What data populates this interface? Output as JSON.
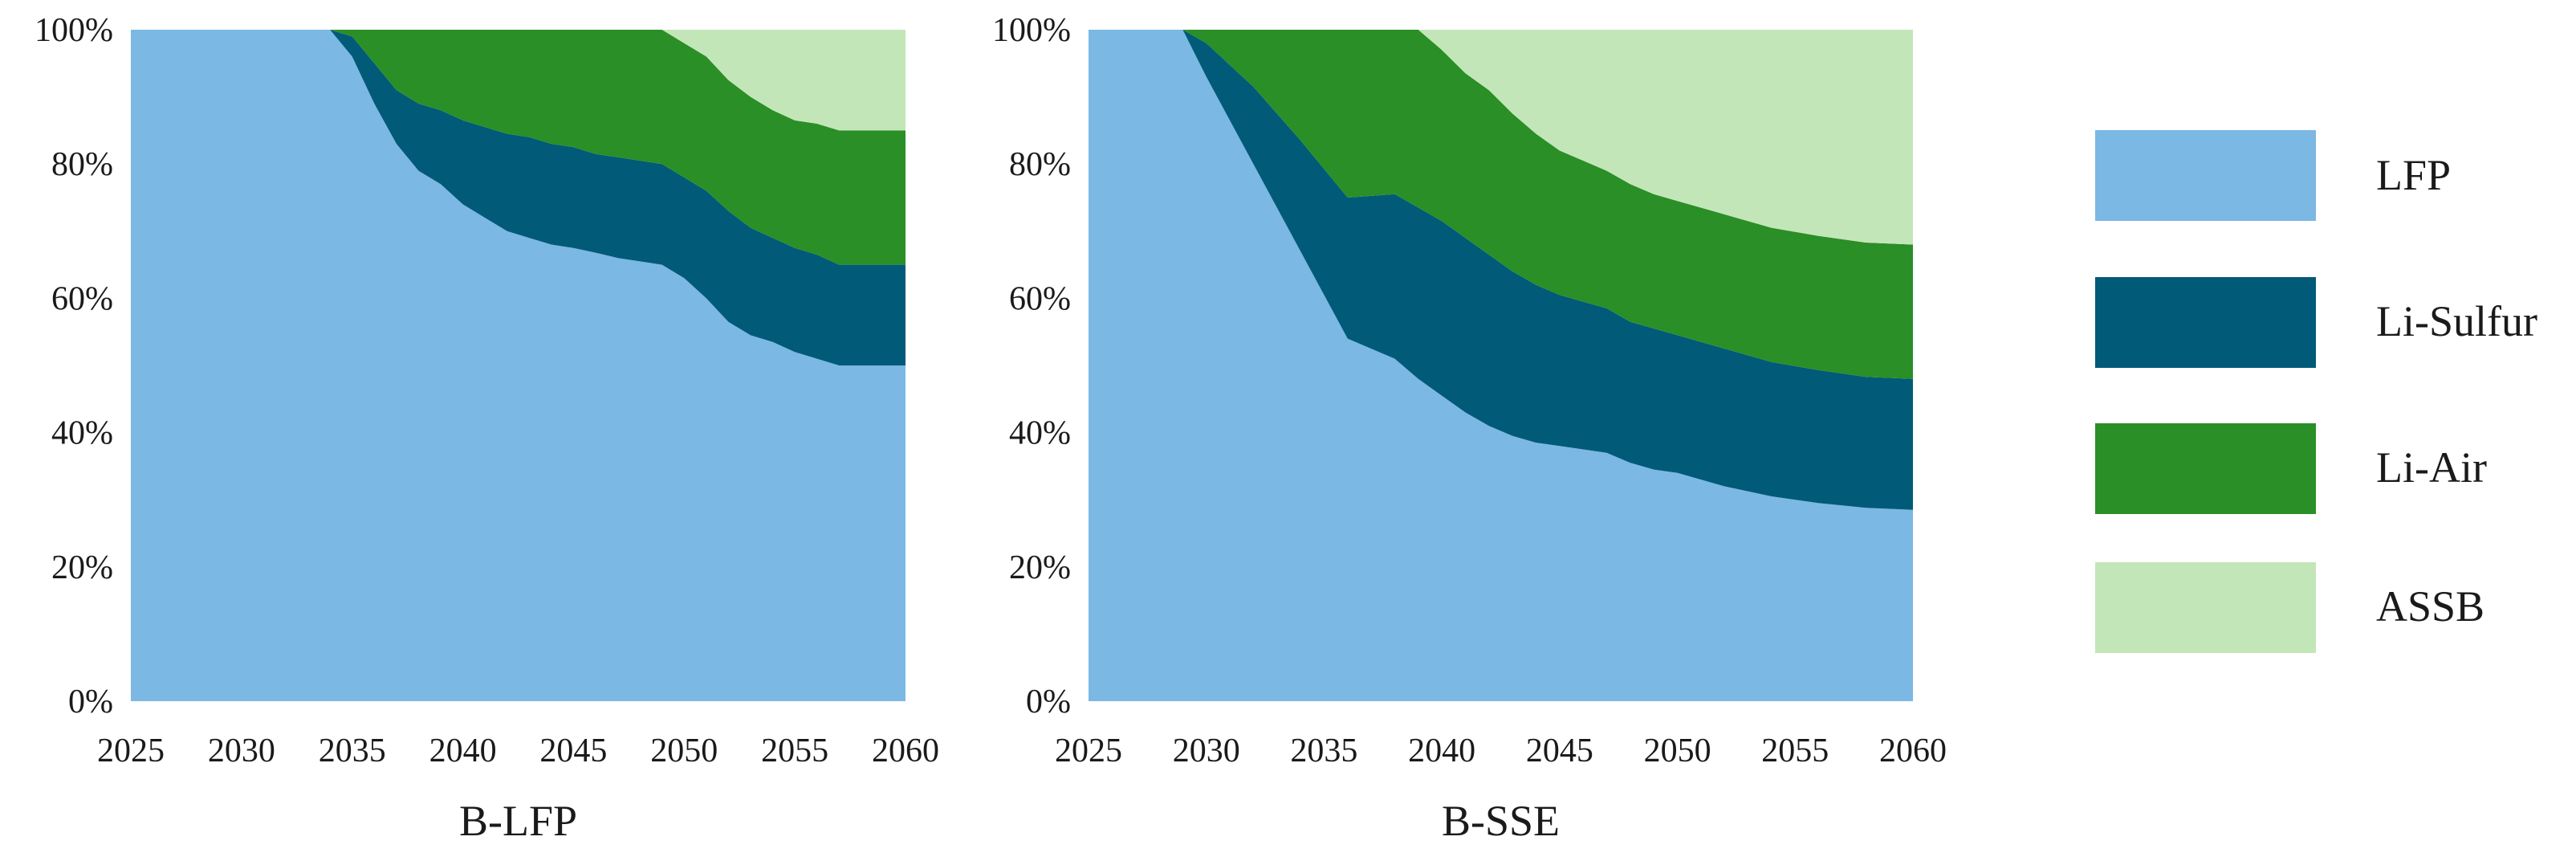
{
  "chart_data": [
    {
      "type": "area",
      "stacked": true,
      "title": "B-LFP",
      "xlabel": "B-LFP",
      "ylabel": "",
      "xlim": [
        2025,
        2060
      ],
      "ylim": [
        0,
        100
      ],
      "x_ticks": [
        "2025",
        "2030",
        "2035",
        "2040",
        "2045",
        "2050",
        "2055",
        "2060"
      ],
      "y_ticks": [
        "0%",
        "20%",
        "40%",
        "60%",
        "80%",
        "100%"
      ],
      "grid": false,
      "x": [
        2025,
        2030,
        2034,
        2035,
        2036,
        2037,
        2038,
        2039,
        2040,
        2041,
        2042,
        2043,
        2044,
        2045,
        2046,
        2047,
        2048,
        2049,
        2050,
        2051,
        2052,
        2053,
        2054,
        2055,
        2056,
        2057,
        2058,
        2059,
        2060
      ],
      "series": [
        {
          "name": "LFP",
          "values": [
            100,
            100,
            100,
            96,
            89,
            83,
            79,
            77,
            74,
            72,
            70,
            69,
            68,
            67.5,
            66.8,
            66,
            65.5,
            65,
            63,
            60,
            56.5,
            54.5,
            53.5,
            52,
            51,
            50,
            50,
            50,
            50
          ]
        },
        {
          "name": "Li-Sulfur",
          "values": [
            0,
            0,
            0,
            3,
            6,
            8,
            10,
            11,
            12.5,
            13.5,
            14.5,
            15,
            15,
            15,
            14.7,
            15,
            15,
            15,
            15,
            16,
            16.5,
            16,
            15.5,
            15.5,
            15.5,
            15,
            15,
            15,
            15
          ]
        },
        {
          "name": "Li-Air",
          "values": [
            0,
            0,
            0,
            1,
            5,
            9,
            11,
            12,
            13.5,
            14.5,
            15.5,
            16,
            17,
            17.5,
            18.5,
            19,
            19.5,
            20,
            20,
            20,
            19.5,
            19.5,
            19,
            19,
            19.5,
            20,
            20,
            20,
            20
          ]
        },
        {
          "name": "ASSB",
          "values": [
            0,
            0,
            0,
            0,
            0,
            0,
            0,
            0,
            0,
            0,
            0,
            0,
            0,
            0,
            0,
            0,
            0,
            0,
            2,
            4,
            7.5,
            10,
            12,
            13.5,
            14,
            15,
            15,
            15,
            15
          ]
        }
      ]
    },
    {
      "type": "area",
      "stacked": true,
      "title": "B-SSE",
      "xlabel": "B-SSE",
      "ylabel": "",
      "xlim": [
        2025,
        2060
      ],
      "ylim": [
        0,
        100
      ],
      "x_ticks": [
        "2025",
        "2030",
        "2035",
        "2040",
        "2045",
        "2050",
        "2055",
        "2060"
      ],
      "y_ticks": [
        "0%",
        "20%",
        "40%",
        "60%",
        "80%",
        "100%"
      ],
      "grid": false,
      "x": [
        2025,
        2029,
        2030,
        2032,
        2034,
        2036,
        2038,
        2039,
        2040,
        2041,
        2042,
        2043,
        2044,
        2045,
        2046,
        2047,
        2048,
        2049,
        2050,
        2052,
        2054,
        2056,
        2058,
        2060
      ],
      "series": [
        {
          "name": "LFP",
          "values": [
            100,
            100,
            93,
            80,
            67,
            54,
            51,
            48,
            45.5,
            43,
            41,
            39.5,
            38.5,
            38,
            37.5,
            37,
            35.5,
            34.5,
            34,
            32,
            30.5,
            29.5,
            28.8,
            28.5
          ]
        },
        {
          "name": "Li-Sulfur",
          "values": [
            0,
            0,
            5,
            11.5,
            16.5,
            21,
            24.5,
            25.5,
            26,
            26,
            25.5,
            24.5,
            23.5,
            22.5,
            22,
            21.5,
            21,
            21,
            20.5,
            20.5,
            20,
            19.8,
            19.5,
            19.5
          ]
        },
        {
          "name": "Li-Air",
          "values": [
            0,
            0,
            2,
            8.5,
            16.5,
            25,
            24.5,
            26.5,
            25.5,
            24.5,
            24.5,
            23.5,
            22.5,
            21.5,
            21,
            20.5,
            20.5,
            20,
            20,
            20,
            20,
            20,
            20,
            20
          ]
        },
        {
          "name": "ASSB",
          "values": [
            0,
            0,
            0,
            0,
            0,
            0,
            0,
            0,
            3,
            6.5,
            9,
            12.5,
            15.5,
            18,
            19.5,
            21,
            23,
            24.5,
            25.5,
            27.5,
            29.5,
            30.7,
            31.7,
            32
          ]
        }
      ]
    }
  ],
  "legend": [
    {
      "label": "LFP",
      "color": "#7bb8e4"
    },
    {
      "label": "Li-Sulfur",
      "color": "#005a78"
    },
    {
      "label": "Li-Air",
      "color": "#2a8f26"
    },
    {
      "label": "ASSB",
      "color": "#c3e6b8"
    }
  ]
}
